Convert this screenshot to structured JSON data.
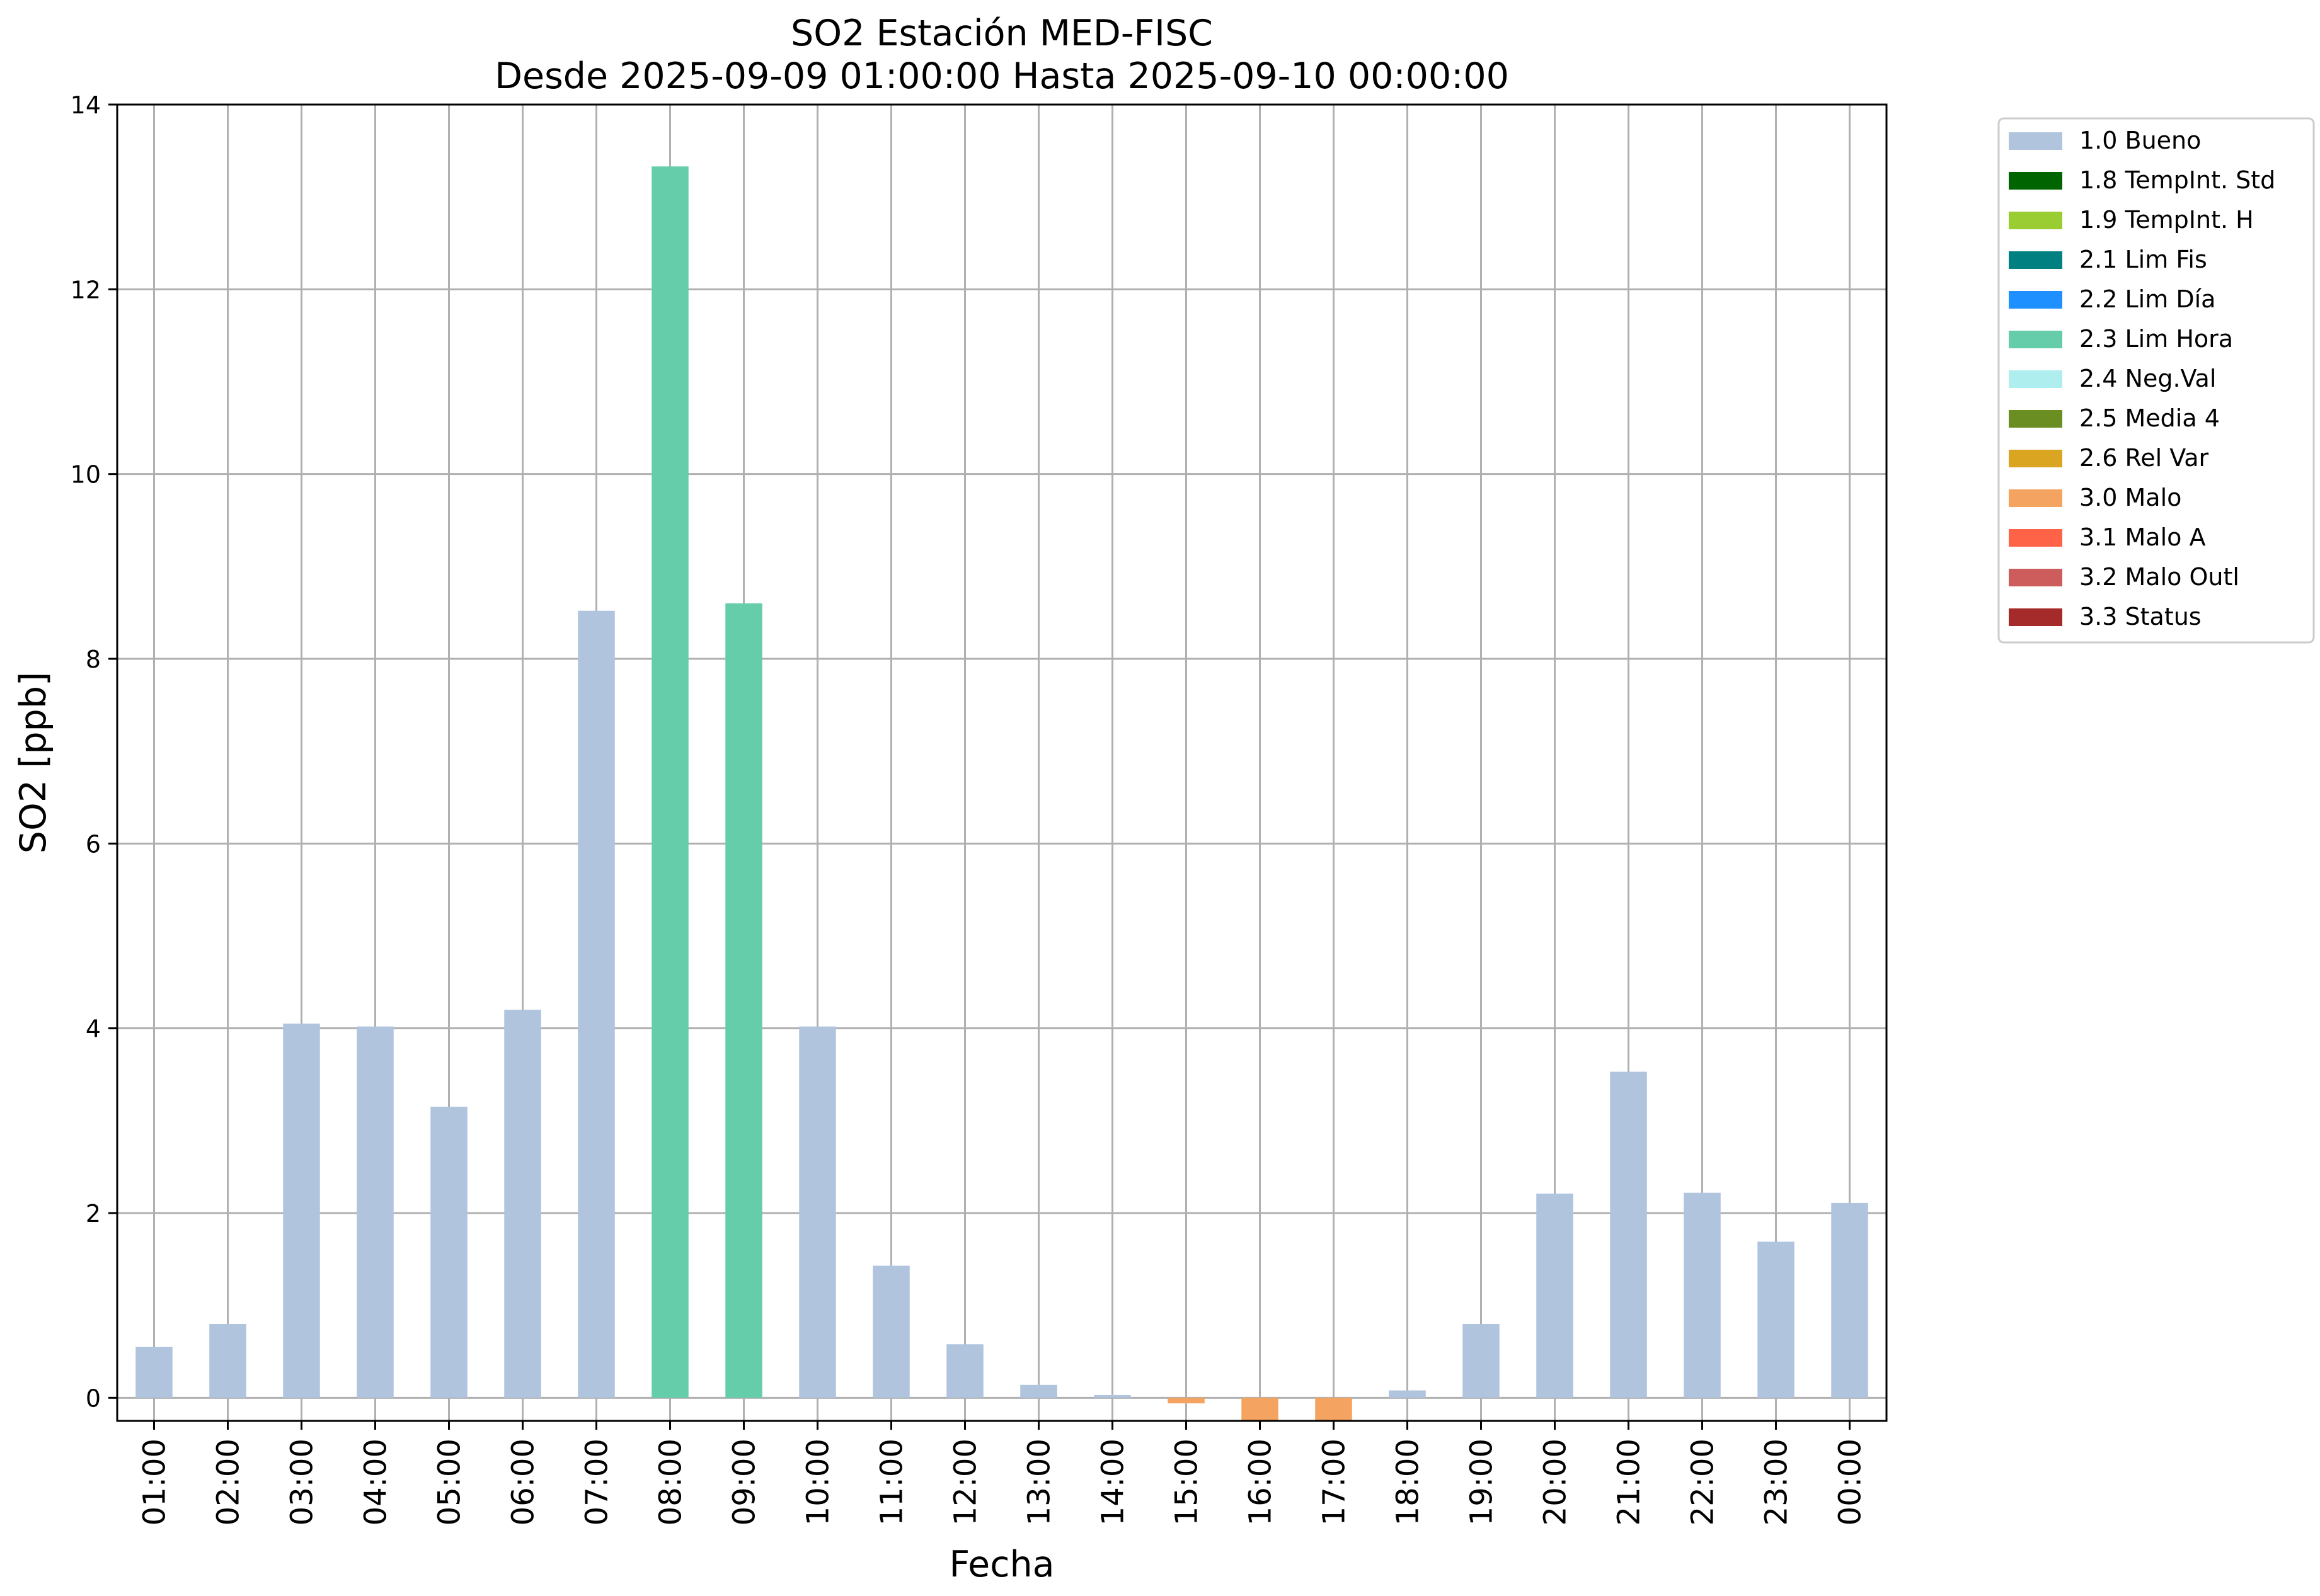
{
  "chart_data": {
    "type": "bar",
    "title": "SO2 Estación MED-FISC",
    "subtitle": "Desde 2025-09-09 01:00:00 Hasta 2025-09-10 00:00:00",
    "xlabel": "Fecha",
    "ylabel": "SO2 [ppb]",
    "ylim": [
      -0.25,
      14
    ],
    "yticks": [
      0,
      2,
      4,
      6,
      8,
      10,
      12,
      14
    ],
    "grid": true,
    "legend_position": "outside-top-right",
    "categories": [
      "01:00",
      "02:00",
      "03:00",
      "04:00",
      "05:00",
      "06:00",
      "07:00",
      "08:00",
      "09:00",
      "10:00",
      "11:00",
      "12:00",
      "13:00",
      "14:00",
      "15:00",
      "16:00",
      "17:00",
      "18:00",
      "19:00",
      "20:00",
      "21:00",
      "22:00",
      "23:00",
      "00:00"
    ],
    "values": [
      0.55,
      0.8,
      4.05,
      4.02,
      3.15,
      4.2,
      8.52,
      13.33,
      8.6,
      4.02,
      1.43,
      0.58,
      0.14,
      0.03,
      -0.06,
      -0.25,
      -0.25,
      0.08,
      0.8,
      2.21,
      3.53,
      2.22,
      1.69,
      2.11
    ],
    "flags": [
      "1.0",
      "1.0",
      "1.0",
      "1.0",
      "1.0",
      "1.0",
      "1.0",
      "2.3",
      "2.3",
      "1.0",
      "1.0",
      "1.0",
      "1.0",
      "1.0",
      "3.0",
      "3.0",
      "3.0",
      "1.0",
      "1.0",
      "1.0",
      "1.0",
      "1.0",
      "1.0",
      "1.0"
    ],
    "legend": [
      {
        "code": "1.0",
        "label": "1.0 Bueno",
        "color": "#b0c4de"
      },
      {
        "code": "1.8",
        "label": "1.8 TempInt. Std",
        "color": "#006400"
      },
      {
        "code": "1.9",
        "label": "1.9 TempInt. H",
        "color": "#9acd32"
      },
      {
        "code": "2.1",
        "label": "2.1 Lim Fis",
        "color": "#008080"
      },
      {
        "code": "2.2",
        "label": "2.2 Lim Día",
        "color": "#1e90ff"
      },
      {
        "code": "2.3",
        "label": "2.3 Lim Hora",
        "color": "#66cdaa"
      },
      {
        "code": "2.4",
        "label": "2.4 Neg.Val",
        "color": "#afeeee"
      },
      {
        "code": "2.5",
        "label": "2.5 Media 4",
        "color": "#6b8e23"
      },
      {
        "code": "2.6",
        "label": "2.6 Rel Var",
        "color": "#daa520"
      },
      {
        "code": "3.0",
        "label": "3.0 Malo",
        "color": "#f4a460"
      },
      {
        "code": "3.1",
        "label": "3.1 Malo A",
        "color": "#ff6347"
      },
      {
        "code": "3.2",
        "label": "3.2 Malo Outl",
        "color": "#cd5c5c"
      },
      {
        "code": "3.3",
        "label": "3.3 Status",
        "color": "#a52a2a"
      }
    ]
  }
}
